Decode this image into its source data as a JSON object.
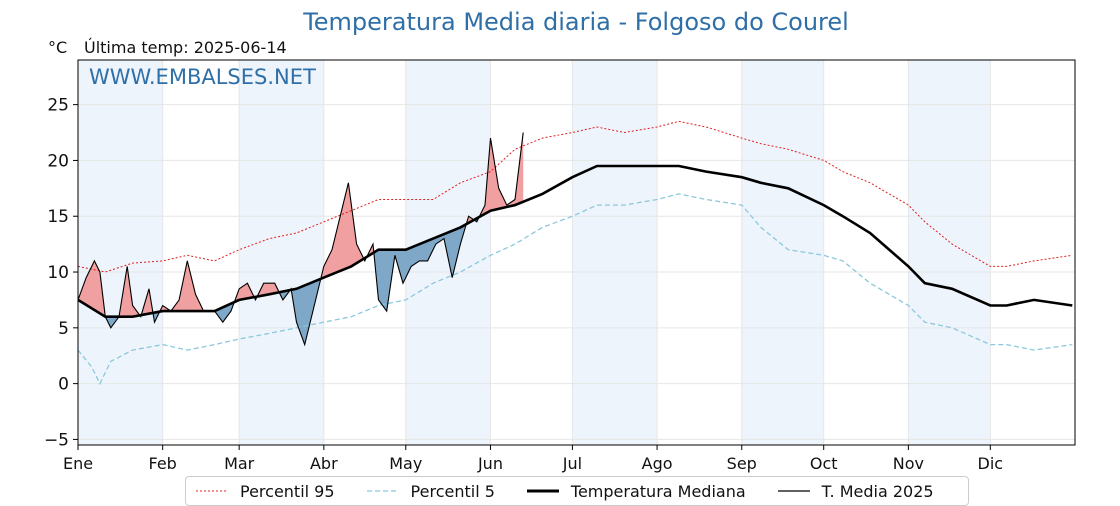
{
  "header": {
    "title": "Temperatura Media diaria - Folgoso do Courel",
    "unit": "°C",
    "last_temp": "Última temp: 2025-06-14"
  },
  "watermark": "WWW.EMBALSES.NET",
  "colors": {
    "p95": "#e02020",
    "p5": "#8cc8dc",
    "median": "#000000",
    "t2025": "#000000",
    "above": "#f0a0a0",
    "above_dark": "#d63030",
    "below": "#7fa8c8",
    "below_dark": "#2f6f9f",
    "band": "#eef4fb",
    "watermark": "#2f6fa7"
  },
  "legend": [
    {
      "key": "p95",
      "label": "Percentil 95"
    },
    {
      "key": "p5",
      "label": "Percentil 5"
    },
    {
      "key": "median",
      "label": "Temperatura Mediana"
    },
    {
      "key": "t2025",
      "label": "T. Media 2025"
    }
  ],
  "chart_data": {
    "type": "line",
    "xlabel": "",
    "ylabel": "°C",
    "xlim": [
      0,
      365
    ],
    "ylim": [
      -5.5,
      29
    ],
    "yticks": [
      -5,
      0,
      5,
      10,
      15,
      20,
      25
    ],
    "grid": true,
    "legend_position": "bottom",
    "month_labels": [
      "Ene",
      "Feb",
      "Mar",
      "Abr",
      "May",
      "Jun",
      "Jul",
      "Ago",
      "Sep",
      "Oct",
      "Nov",
      "Dic"
    ],
    "month_starts": [
      0,
      31,
      59,
      90,
      120,
      151,
      181,
      212,
      243,
      273,
      304,
      334
    ],
    "series": [
      {
        "name": "Percentil 95",
        "style": "dotted-red",
        "x": [
          0,
          10,
          20,
          31,
          40,
          50,
          59,
          70,
          80,
          90,
          100,
          110,
          120,
          130,
          140,
          151,
          160,
          170,
          181,
          190,
          200,
          212,
          220,
          230,
          243,
          250,
          260,
          273,
          280,
          290,
          304,
          310,
          320,
          334,
          340,
          350,
          364
        ],
        "y": [
          10.5,
          10,
          10.8,
          11,
          11.5,
          11,
          12,
          13,
          13.5,
          14.5,
          15.5,
          16.5,
          16.5,
          16.5,
          18,
          19,
          21,
          22,
          22.5,
          23,
          22.5,
          23,
          23.5,
          23,
          22,
          21.5,
          21,
          20,
          19,
          18,
          16,
          14.5,
          12.5,
          10.5,
          10.5,
          11,
          11.5
        ]
      },
      {
        "name": "Percentil 5",
        "style": "dashed-lightblue",
        "x": [
          0,
          5,
          8,
          12,
          20,
          31,
          40,
          50,
          59,
          70,
          80,
          90,
          100,
          110,
          120,
          130,
          140,
          151,
          160,
          170,
          181,
          190,
          200,
          212,
          220,
          230,
          243,
          250,
          260,
          273,
          280,
          290,
          304,
          310,
          320,
          334,
          340,
          350,
          364
        ],
        "y": [
          3,
          1.5,
          0,
          2,
          3,
          3.5,
          3,
          3.5,
          4,
          4.5,
          5,
          5.5,
          6,
          7,
          7.5,
          9,
          10,
          11.5,
          12.5,
          14,
          15,
          16,
          16,
          16.5,
          17,
          16.5,
          16,
          14,
          12,
          11.5,
          11,
          9,
          7,
          5.5,
          5,
          3.5,
          3.5,
          3,
          3.5
        ]
      },
      {
        "name": "Temperatura Mediana",
        "style": "thick-black",
        "x": [
          0,
          10,
          20,
          31,
          40,
          50,
          59,
          70,
          80,
          90,
          100,
          110,
          120,
          130,
          140,
          151,
          160,
          170,
          181,
          190,
          200,
          212,
          220,
          230,
          243,
          250,
          260,
          273,
          280,
          290,
          304,
          310,
          320,
          334,
          340,
          350,
          364
        ],
        "y": [
          7.5,
          6,
          6,
          6.5,
          6.5,
          6.5,
          7.5,
          8,
          8.5,
          9.5,
          10.5,
          12,
          12,
          13,
          14,
          15.5,
          16,
          17,
          18.5,
          19.5,
          19.5,
          19.5,
          19.5,
          19,
          18.5,
          18,
          17.5,
          16,
          15,
          13.5,
          10.5,
          9,
          8.5,
          7,
          7,
          7.5,
          7
        ]
      },
      {
        "name": "T. Media 2025",
        "style": "thin-black",
        "x": [
          0,
          3,
          6,
          8,
          10,
          12,
          15,
          18,
          20,
          23,
          26,
          28,
          31,
          34,
          37,
          40,
          43,
          46,
          50,
          53,
          56,
          59,
          62,
          65,
          68,
          72,
          75,
          78,
          80,
          83,
          86,
          90,
          93,
          96,
          99,
          102,
          105,
          108,
          110,
          113,
          116,
          119,
          122,
          125,
          128,
          131,
          134,
          137,
          140,
          143,
          146,
          149,
          151,
          154,
          157,
          160,
          163
        ],
        "y": [
          7.5,
          9.5,
          11,
          10,
          6,
          5,
          6,
          10.5,
          7,
          6,
          8.5,
          5.5,
          7,
          6.5,
          7.5,
          11,
          8,
          6.5,
          6.5,
          5.5,
          6.5,
          8.5,
          9,
          7.5,
          9,
          9,
          7.5,
          8.5,
          5.5,
          3.5,
          6.5,
          10.5,
          12,
          15,
          18,
          12.5,
          11,
          12.5,
          7.5,
          6.5,
          11.5,
          9,
          10.5,
          11,
          11,
          12.5,
          13,
          9.5,
          12.5,
          15,
          14.5,
          16,
          22,
          17.5,
          16,
          16.5,
          22.5
        ]
      }
    ]
  }
}
